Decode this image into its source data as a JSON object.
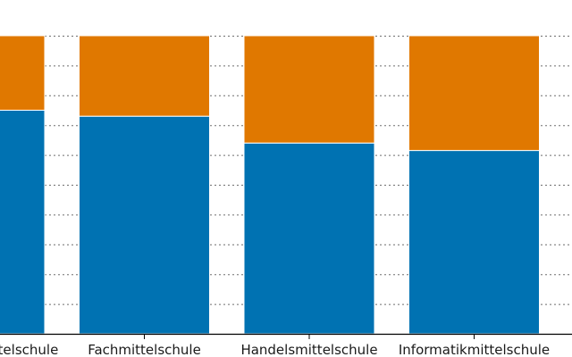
{
  "chart_data": {
    "type": "bar",
    "stacked": true,
    "normalized": true,
    "categories": [
      "Wirtschaftsmittelschule",
      "Fachmittelschule",
      "Handelsmittelschule",
      "Informatikmittelschule"
    ],
    "series": [
      {
        "values": [
          0.75,
          0.73,
          0.64,
          0.615
        ],
        "color": "#0072B2"
      },
      {
        "values": [
          0.25,
          0.27,
          0.36,
          0.385
        ],
        "color": "#E07800"
      }
    ],
    "ylim": [
      0,
      1
    ],
    "grid": true,
    "gridline_count": 10,
    "grid_style": "dotted"
  }
}
